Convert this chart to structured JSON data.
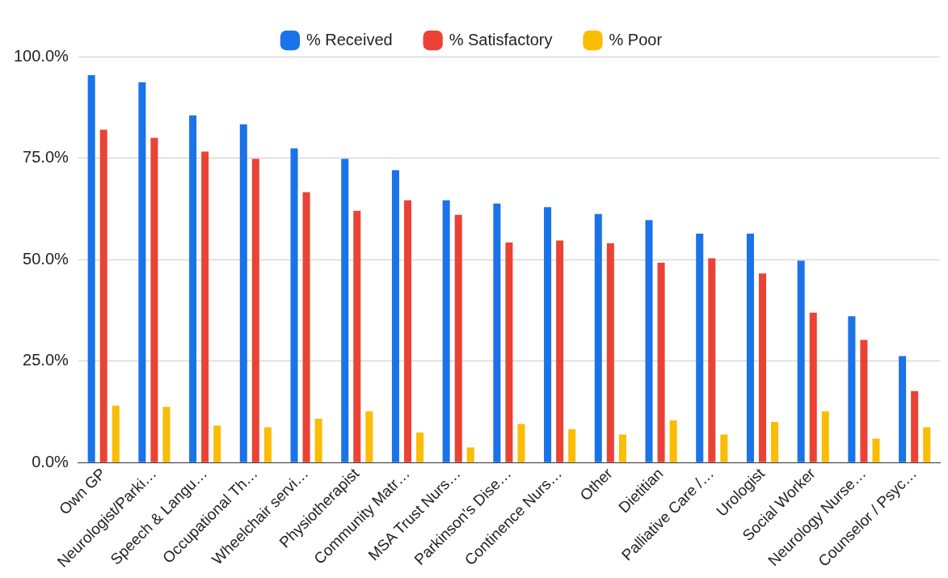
{
  "chart_data": {
    "type": "bar",
    "categories": [
      "Own GP",
      "Neurologist/Parki…",
      "Speech & Langu…",
      "Occupational Th…",
      "Wheelchair servi…",
      "Physiotherapist",
      "Community Matr…",
      "MSA Trust Nurs…",
      "Parkinson's Dise…",
      "Continence Nurs…",
      "Other",
      "Dietitian",
      "Palliative Care /…",
      "Urologist",
      "Social Worker",
      "Neurology Nurse…",
      "Counselor / Psyc…"
    ],
    "series": [
      {
        "name": "% Received",
        "color": "#1a73e8",
        "values": [
          95.4,
          93.7,
          85.5,
          83.3,
          77.4,
          74.8,
          72.0,
          64.6,
          63.8,
          62.9,
          61.2,
          59.7,
          56.4,
          56.4,
          49.7,
          36.0,
          26.2
        ]
      },
      {
        "name": "% Satisfactory",
        "color": "#ea4335",
        "values": [
          82.0,
          80.0,
          76.6,
          74.8,
          66.6,
          62.0,
          64.6,
          61.0,
          54.2,
          54.7,
          54.0,
          49.2,
          50.3,
          46.6,
          36.9,
          30.2,
          17.6
        ]
      },
      {
        "name": "% Poor",
        "color": "#fbbc04",
        "values": [
          14.0,
          13.7,
          9.1,
          8.7,
          10.8,
          12.6,
          7.4,
          3.7,
          9.5,
          8.2,
          6.9,
          10.4,
          6.9,
          10.0,
          12.6,
          5.9,
          8.7
        ]
      }
    ],
    "ylim": [
      0,
      100
    ],
    "yticks": [
      {
        "value": 0,
        "label": "0.0%"
      },
      {
        "value": 25,
        "label": "25.0%"
      },
      {
        "value": 50,
        "label": "50.0%"
      },
      {
        "value": 75,
        "label": "75.0%"
      },
      {
        "value": 100,
        "label": "100.0%"
      }
    ],
    "grid": "y",
    "legend": "top"
  }
}
